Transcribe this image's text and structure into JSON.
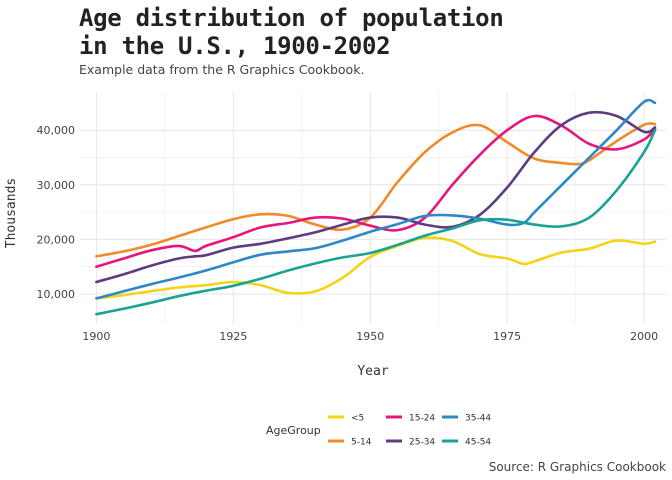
{
  "header": {
    "title_line1": "Age distribution of population",
    "title_line2": "in the U.S., 1900-2002",
    "subtitle": "Example data from the R Graphics Cookbook."
  },
  "caption": "Source: R Graphics Cookbook",
  "chart_data": {
    "type": "line",
    "xlabel": "Year",
    "ylabel": "Thousands",
    "xlim": [
      1897,
      2004
    ],
    "ylim": [
      4500,
      47000
    ],
    "x_ticks": [
      1900,
      1925,
      1950,
      1975,
      2000
    ],
    "y_ticks": [
      10000,
      20000,
      30000,
      40000
    ],
    "x_tick_labels": [
      "1900",
      "1925",
      "1950",
      "1975",
      "2000"
    ],
    "y_tick_labels": [
      "10,000",
      "20,000",
      "30,000",
      "40,000"
    ],
    "grid": true,
    "legend": {
      "title": "AgeGroup",
      "placement": "bottom",
      "entries": [
        "<5",
        "5-14",
        "15-24",
        "25-34",
        "35-44",
        "45-54"
      ]
    },
    "series": [
      {
        "name": "<5",
        "color": "#f5d316",
        "points": [
          [
            1900,
            9200
          ],
          [
            1905,
            9800
          ],
          [
            1910,
            10500
          ],
          [
            1915,
            11200
          ],
          [
            1920,
            11600
          ],
          [
            1925,
            12200
          ],
          [
            1930,
            11600
          ],
          [
            1935,
            10200
          ],
          [
            1940,
            10500
          ],
          [
            1945,
            13000
          ],
          [
            1950,
            16800
          ],
          [
            1955,
            18800
          ],
          [
            1960,
            20300
          ],
          [
            1965,
            19700
          ],
          [
            1970,
            17300
          ],
          [
            1975,
            16500
          ],
          [
            1978,
            15500
          ],
          [
            1980,
            16000
          ],
          [
            1985,
            17600
          ],
          [
            1990,
            18300
          ],
          [
            1995,
            19800
          ],
          [
            2000,
            19200
          ],
          [
            2002,
            19600
          ]
        ]
      },
      {
        "name": "5-14",
        "color": "#ef8b2a",
        "points": [
          [
            1900,
            16900
          ],
          [
            1905,
            17800
          ],
          [
            1910,
            19000
          ],
          [
            1915,
            20600
          ],
          [
            1920,
            22200
          ],
          [
            1925,
            23700
          ],
          [
            1930,
            24600
          ],
          [
            1935,
            24300
          ],
          [
            1940,
            22700
          ],
          [
            1945,
            21800
          ],
          [
            1950,
            24000
          ],
          [
            1955,
            30500
          ],
          [
            1960,
            36000
          ],
          [
            1965,
            39600
          ],
          [
            1970,
            40900
          ],
          [
            1975,
            37800
          ],
          [
            1980,
            34800
          ],
          [
            1985,
            34000
          ],
          [
            1988,
            33800
          ],
          [
            1990,
            34500
          ],
          [
            1995,
            38000
          ],
          [
            2000,
            41000
          ],
          [
            2002,
            41100
          ]
        ]
      },
      {
        "name": "15-24",
        "color": "#e8157c",
        "points": [
          [
            1900,
            15000
          ],
          [
            1905,
            16500
          ],
          [
            1910,
            18000
          ],
          [
            1915,
            18800
          ],
          [
            1918,
            17900
          ],
          [
            1920,
            18800
          ],
          [
            1925,
            20400
          ],
          [
            1930,
            22200
          ],
          [
            1935,
            23000
          ],
          [
            1940,
            24000
          ],
          [
            1945,
            23800
          ],
          [
            1950,
            22500
          ],
          [
            1955,
            21700
          ],
          [
            1960,
            24000
          ],
          [
            1965,
            30000
          ],
          [
            1970,
            35500
          ],
          [
            1975,
            40000
          ],
          [
            1980,
            42600
          ],
          [
            1985,
            40800
          ],
          [
            1990,
            37500
          ],
          [
            1995,
            36500
          ],
          [
            2000,
            38300
          ],
          [
            2002,
            40300
          ]
        ]
      },
      {
        "name": "25-34",
        "color": "#5e3c82",
        "points": [
          [
            1900,
            12200
          ],
          [
            1905,
            13600
          ],
          [
            1910,
            15200
          ],
          [
            1915,
            16500
          ],
          [
            1918,
            16900
          ],
          [
            1920,
            17100
          ],
          [
            1925,
            18500
          ],
          [
            1930,
            19200
          ],
          [
            1935,
            20200
          ],
          [
            1940,
            21300
          ],
          [
            1945,
            22700
          ],
          [
            1950,
            24000
          ],
          [
            1955,
            24000
          ],
          [
            1960,
            22700
          ],
          [
            1965,
            22300
          ],
          [
            1970,
            24500
          ],
          [
            1975,
            29500
          ],
          [
            1980,
            36000
          ],
          [
            1985,
            41000
          ],
          [
            1990,
            43200
          ],
          [
            1995,
            42600
          ],
          [
            2000,
            39700
          ],
          [
            2002,
            40500
          ]
        ]
      },
      {
        "name": "35-44",
        "color": "#2e88c6",
        "points": [
          [
            1900,
            9200
          ],
          [
            1905,
            10500
          ],
          [
            1910,
            11800
          ],
          [
            1915,
            13000
          ],
          [
            1920,
            14300
          ],
          [
            1925,
            15800
          ],
          [
            1930,
            17200
          ],
          [
            1935,
            17800
          ],
          [
            1940,
            18400
          ],
          [
            1945,
            19800
          ],
          [
            1950,
            21400
          ],
          [
            1955,
            22800
          ],
          [
            1960,
            24300
          ],
          [
            1965,
            24400
          ],
          [
            1970,
            23800
          ],
          [
            1975,
            22700
          ],
          [
            1978,
            23000
          ],
          [
            1980,
            25000
          ],
          [
            1985,
            30000
          ],
          [
            1990,
            35000
          ],
          [
            1995,
            40000
          ],
          [
            2000,
            45200
          ],
          [
            2002,
            45000
          ]
        ]
      },
      {
        "name": "45-54",
        "color": "#1aa394",
        "points": [
          [
            1900,
            6300
          ],
          [
            1905,
            7300
          ],
          [
            1910,
            8400
          ],
          [
            1915,
            9600
          ],
          [
            1920,
            10600
          ],
          [
            1925,
            11500
          ],
          [
            1930,
            12800
          ],
          [
            1935,
            14300
          ],
          [
            1940,
            15600
          ],
          [
            1945,
            16700
          ],
          [
            1950,
            17500
          ],
          [
            1955,
            19000
          ],
          [
            1960,
            20700
          ],
          [
            1965,
            22000
          ],
          [
            1970,
            23500
          ],
          [
            1975,
            23600
          ],
          [
            1980,
            22700
          ],
          [
            1985,
            22400
          ],
          [
            1990,
            24000
          ],
          [
            1995,
            29000
          ],
          [
            2000,
            36000
          ],
          [
            2002,
            40000
          ]
        ]
      }
    ]
  }
}
